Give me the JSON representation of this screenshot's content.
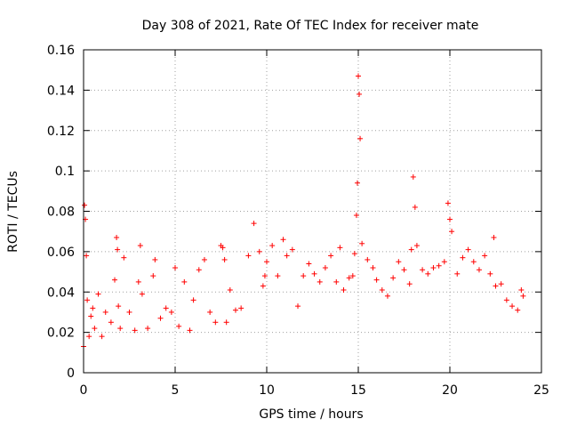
{
  "chart_data": {
    "type": "scatter",
    "title": "Day 308 of 2021, Rate Of TEC Index for receiver mate",
    "xlabel": "GPS time / hours",
    "ylabel": "ROTI / TECUs",
    "xlim": [
      0,
      25
    ],
    "ylim": [
      0,
      0.16
    ],
    "xticks": [
      0,
      5,
      10,
      15,
      20,
      25
    ],
    "yticks": [
      0,
      0.02,
      0.04,
      0.06,
      0.08,
      0.1,
      0.12,
      0.14,
      0.16
    ],
    "xtick_labels": [
      "0",
      "5",
      "10",
      "15",
      "20",
      "25"
    ],
    "ytick_labels": [
      "0",
      "0.02",
      "0.04",
      "0.06",
      "0.08",
      "0.1",
      "0.12",
      "0.14",
      "0.16"
    ],
    "grid": true,
    "marker": "+",
    "color": "#ff0000",
    "series": [
      {
        "name": "ROTI",
        "x": [
          0.0,
          0.05,
          0.1,
          0.15,
          0.2,
          0.3,
          0.4,
          0.5,
          0.6,
          0.8,
          1.0,
          1.2,
          1.5,
          1.7,
          1.8,
          1.85,
          1.9,
          2.0,
          2.2,
          2.5,
          2.8,
          3.0,
          3.1,
          3.2,
          3.5,
          3.8,
          3.9,
          4.2,
          4.5,
          4.8,
          5.0,
          5.2,
          5.5,
          5.8,
          6.0,
          6.3,
          6.6,
          6.9,
          7.2,
          7.5,
          7.6,
          7.7,
          7.8,
          8.0,
          8.3,
          8.6,
          9.0,
          9.3,
          9.6,
          9.8,
          9.9,
          10.0,
          10.3,
          10.6,
          10.9,
          11.1,
          11.4,
          11.7,
          12.0,
          12.3,
          12.6,
          12.9,
          13.2,
          13.5,
          13.8,
          14.0,
          14.2,
          14.5,
          14.7,
          14.8,
          14.9,
          14.95,
          15.0,
          15.05,
          15.1,
          15.2,
          15.5,
          15.8,
          16.0,
          16.3,
          16.6,
          16.9,
          17.2,
          17.5,
          17.8,
          17.9,
          18.0,
          18.1,
          18.2,
          18.5,
          18.8,
          19.1,
          19.4,
          19.7,
          19.9,
          20.0,
          20.1,
          20.4,
          20.7,
          21.0,
          21.3,
          21.6,
          21.9,
          22.2,
          22.4,
          22.5,
          22.8,
          23.1,
          23.4,
          23.7,
          23.9,
          24.0
        ],
        "y": [
          0.013,
          0.083,
          0.076,
          0.058,
          0.036,
          0.018,
          0.028,
          0.032,
          0.022,
          0.039,
          0.018,
          0.03,
          0.025,
          0.046,
          0.067,
          0.061,
          0.033,
          0.022,
          0.057,
          0.03,
          0.021,
          0.045,
          0.063,
          0.039,
          0.022,
          0.048,
          0.056,
          0.027,
          0.032,
          0.03,
          0.052,
          0.023,
          0.045,
          0.021,
          0.036,
          0.051,
          0.056,
          0.03,
          0.025,
          0.063,
          0.062,
          0.056,
          0.025,
          0.041,
          0.031,
          0.032,
          0.058,
          0.074,
          0.06,
          0.043,
          0.048,
          0.055,
          0.063,
          0.048,
          0.066,
          0.058,
          0.061,
          0.033,
          0.048,
          0.054,
          0.049,
          0.045,
          0.052,
          0.058,
          0.045,
          0.062,
          0.041,
          0.047,
          0.048,
          0.059,
          0.078,
          0.094,
          0.147,
          0.138,
          0.116,
          0.064,
          0.056,
          0.052,
          0.046,
          0.041,
          0.038,
          0.047,
          0.055,
          0.051,
          0.044,
          0.061,
          0.097,
          0.082,
          0.063,
          0.051,
          0.049,
          0.052,
          0.053,
          0.055,
          0.084,
          0.076,
          0.07,
          0.049,
          0.057,
          0.061,
          0.055,
          0.051,
          0.058,
          0.049,
          0.067,
          0.043,
          0.044,
          0.036,
          0.033,
          0.031,
          0.041,
          0.038
        ]
      }
    ]
  }
}
